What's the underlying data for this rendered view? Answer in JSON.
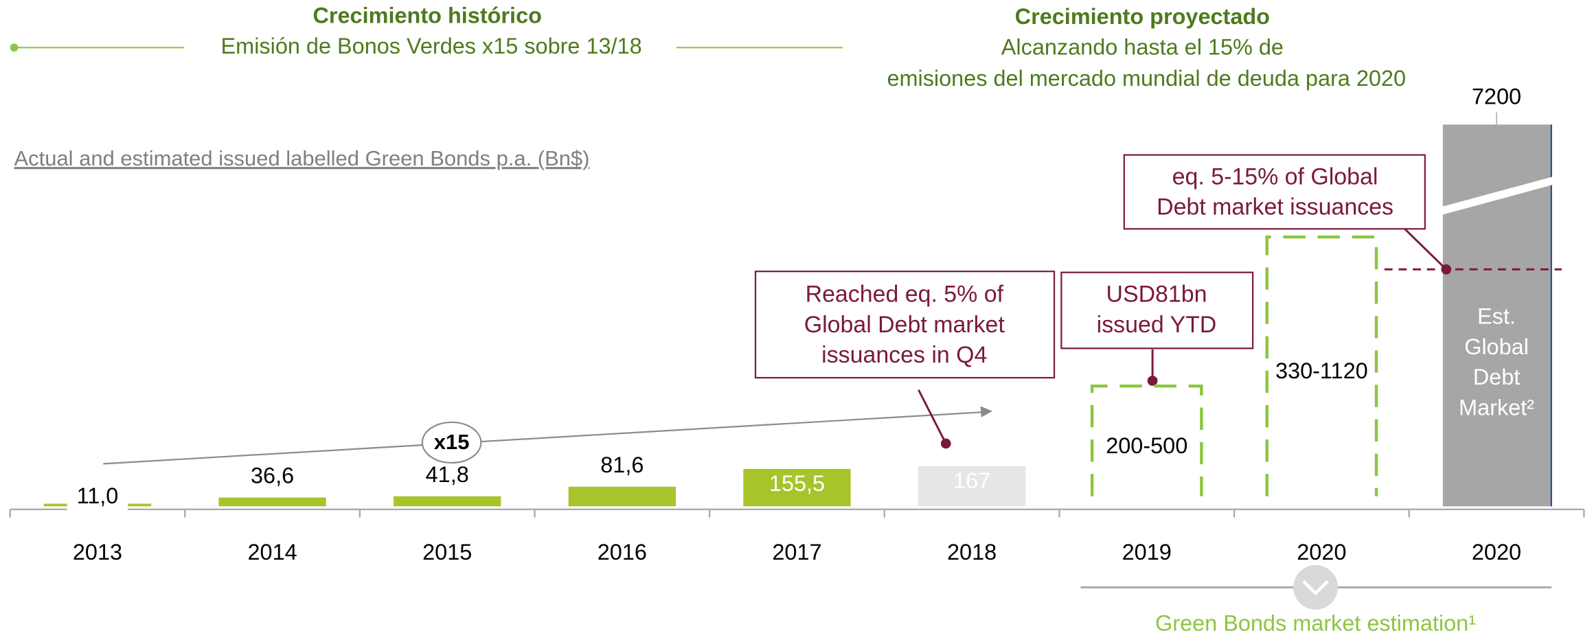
{
  "chart_data": {
    "type": "bar",
    "header_left": {
      "title": "Crecimiento histórico",
      "subtitle": "Emisión de Bonos Verdes x15 sobre 13/18"
    },
    "header_right": {
      "title": "Crecimiento proyectado",
      "lines": [
        "Alcanzando hasta el 15% de",
        "emisiones del mercado mundial de deuda para 2020"
      ]
    },
    "subtitle": "Actual and estimated issued labelled Green Bonds p.a. (Bn$)",
    "categories": [
      "2013",
      "2014",
      "2015",
      "2016",
      "2017",
      "2018",
      "2019",
      "2020",
      "2020"
    ],
    "values": [
      11.0,
      36.6,
      41.8,
      81.6,
      155.5,
      167,
      null,
      null,
      7200
    ],
    "value_labels": [
      "11,0",
      "36,6",
      "41,8",
      "81,6",
      "155,5",
      "167",
      null,
      null,
      "7200"
    ],
    "ranges": [
      null,
      null,
      null,
      null,
      null,
      null,
      [
        200,
        500
      ],
      [
        330,
        1120
      ],
      null
    ],
    "range_labels": [
      null,
      null,
      null,
      null,
      null,
      null,
      "200-500",
      "330-1120",
      null
    ],
    "colors": [
      "#a7c52b",
      "#a7c52b",
      "#a7c52b",
      "#a7c52b",
      "#a7c52b",
      "#e6e6e6",
      "#8cc63f",
      "#8cc63f",
      "#a6a6a6"
    ],
    "ylim": [
      0,
      1600
    ],
    "axis_break": true,
    "growth_label": "x15",
    "market_bar_label": [
      "Est.",
      "Global",
      "Debt",
      "Market²"
    ],
    "annotations": [
      {
        "lines": [
          "Reached eq. 5% of",
          "Global Debt market",
          "issuances in Q4"
        ]
      },
      {
        "lines": [
          "USD81bn",
          "issued YTD"
        ]
      },
      {
        "lines": [
          "eq. 5-15% of Global",
          "Debt market issuances"
        ]
      }
    ],
    "footer": "Green Bonds market estimation¹"
  }
}
